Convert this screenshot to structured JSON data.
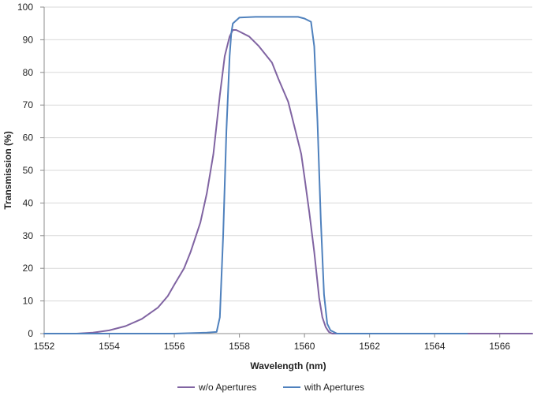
{
  "chart_data": {
    "type": "line",
    "title": "",
    "xlabel": "Wavelength (nm)",
    "ylabel": "Transmission (%)",
    "xlim": [
      1552,
      1567
    ],
    "ylim": [
      0,
      100
    ],
    "x_ticks": [
      1552,
      1554,
      1556,
      1558,
      1560,
      1562,
      1564,
      1566
    ],
    "y_ticks": [
      0,
      10,
      20,
      30,
      40,
      50,
      60,
      70,
      80,
      90,
      100
    ],
    "grid": "horizontal",
    "legend_position": "bottom",
    "series": [
      {
        "name": "w/o Apertures",
        "color": "#8064a2",
        "x": [
          1552,
          1553,
          1553.5,
          1554,
          1554.5,
          1555,
          1555.5,
          1555.8,
          1556,
          1556.3,
          1556.5,
          1556.8,
          1557,
          1557.2,
          1557.4,
          1557.55,
          1557.7,
          1557.8,
          1557.9,
          1558.0,
          1558.3,
          1558.6,
          1559.0,
          1559.2,
          1559.5,
          1559.7,
          1559.9,
          1560.0,
          1560.15,
          1560.3,
          1560.45,
          1560.55,
          1560.65,
          1560.75,
          1560.85,
          1561,
          1562,
          1564,
          1567
        ],
        "y": [
          0,
          0,
          0.3,
          1,
          2.3,
          4.5,
          8,
          11.5,
          15,
          20,
          25,
          34,
          43,
          55,
          73,
          85,
          91,
          93,
          93,
          92.5,
          91,
          88,
          83,
          78,
          71,
          63,
          55,
          48,
          37,
          25,
          11,
          5,
          2,
          0.5,
          0,
          0,
          0,
          0,
          0
        ]
      },
      {
        "name": "with Apertures",
        "color": "#4f81bd",
        "x": [
          1552,
          1554,
          1556,
          1557,
          1557.3,
          1557.4,
          1557.5,
          1557.6,
          1557.7,
          1557.75,
          1557.8,
          1558,
          1558.5,
          1559,
          1559.5,
          1559.8,
          1560,
          1560.2,
          1560.3,
          1560.4,
          1560.5,
          1560.6,
          1560.7,
          1560.8,
          1561,
          1562,
          1564,
          1565
        ],
        "y": [
          0,
          0,
          0,
          0.3,
          0.5,
          5,
          30,
          62,
          85,
          92,
          95,
          96.8,
          97,
          97,
          97,
          97,
          96.5,
          95.5,
          88,
          65,
          35,
          12,
          3,
          1,
          0,
          0,
          0,
          0
        ]
      }
    ]
  }
}
